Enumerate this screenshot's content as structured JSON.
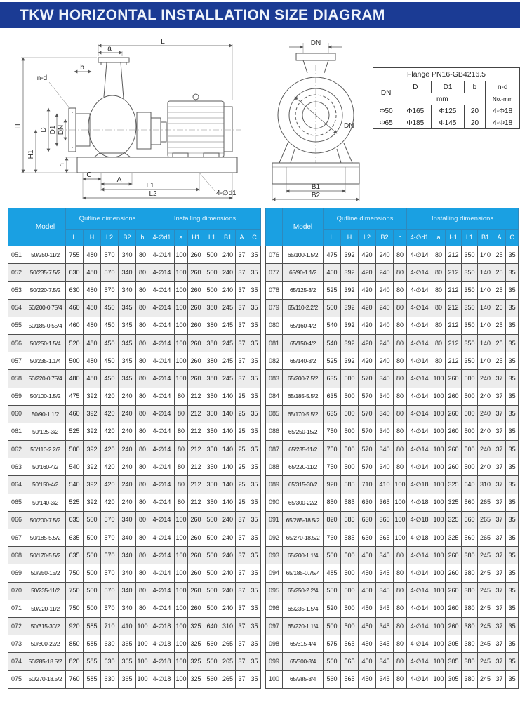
{
  "title": "TKW HORIZONTAL INSTALLATION SIZE DIAGRAM",
  "colors": {
    "banner": "#1b3b94",
    "table_header": "#1aa0e2",
    "row_alt": "#ececec"
  },
  "drawing": {
    "side": {
      "L": "L",
      "a": "a",
      "b": "b",
      "nd": "n-d",
      "H": "H",
      "H1": "H1",
      "D": "D",
      "D1": "D1",
      "DN": "DN",
      "h": "h",
      "C": "C",
      "A": "A",
      "L1": "L1",
      "L2": "L2",
      "d1": "4-∅d1"
    },
    "front": {
      "DN": "DN",
      "B1": "B1",
      "B2": "B2"
    }
  },
  "flange_table": {
    "title": "Flange PN16-GB4216.5",
    "headers": [
      "DN",
      "D",
      "D1",
      "b",
      "n-d"
    ],
    "unit_mm": "mm",
    "unit_nd": "No.-mm",
    "rows": [
      [
        "Φ50",
        "Φ165",
        "Φ125",
        "20",
        "4-Φ18"
      ],
      [
        "Φ65",
        "Φ185",
        "Φ145",
        "20",
        "4-Φ18"
      ]
    ]
  },
  "main_table": {
    "model_header": "Model",
    "group1": "Qutline dimensions",
    "group2": "Installing dimensions",
    "columns": [
      "L",
      "H",
      "L2",
      "B2",
      "h",
      "4-∅d1",
      "a",
      "H1",
      "L1",
      "B1",
      "A",
      "C"
    ],
    "left_rows": [
      [
        "051",
        "50/250-11/2",
        "755",
        "480",
        "570",
        "340",
        "80",
        "4-∅14",
        "100",
        "260",
        "500",
        "240",
        "37",
        "35"
      ],
      [
        "052",
        "50/235-7.5/2",
        "630",
        "480",
        "570",
        "340",
        "80",
        "4-∅14",
        "100",
        "260",
        "500",
        "240",
        "37",
        "35"
      ],
      [
        "053",
        "50/220-7.5/2",
        "630",
        "480",
        "570",
        "340",
        "80",
        "4-∅14",
        "100",
        "260",
        "500",
        "240",
        "37",
        "35"
      ],
      [
        "054",
        "50/200-0.75/4",
        "460",
        "480",
        "450",
        "345",
        "80",
        "4-∅14",
        "100",
        "260",
        "380",
        "245",
        "37",
        "35"
      ],
      [
        "055",
        "50/185-0.55/4",
        "460",
        "480",
        "450",
        "345",
        "80",
        "4-∅14",
        "100",
        "260",
        "380",
        "245",
        "37",
        "35"
      ],
      [
        "056",
        "50/250-1.5/4",
        "520",
        "480",
        "450",
        "345",
        "80",
        "4-∅14",
        "100",
        "260",
        "380",
        "245",
        "37",
        "35"
      ],
      [
        "057",
        "50/235-1.1/4",
        "500",
        "480",
        "450",
        "345",
        "80",
        "4-∅14",
        "100",
        "260",
        "380",
        "245",
        "37",
        "35"
      ],
      [
        "058",
        "50/220-0.75/4",
        "480",
        "480",
        "450",
        "345",
        "80",
        "4-∅14",
        "100",
        "260",
        "380",
        "245",
        "37",
        "35"
      ],
      [
        "059",
        "50/100-1.5/2",
        "475",
        "392",
        "420",
        "240",
        "80",
        "4-∅14",
        "80",
        "212",
        "350",
        "140",
        "25",
        "35"
      ],
      [
        "060",
        "50/90-1.1/2",
        "460",
        "392",
        "420",
        "240",
        "80",
        "4-∅14",
        "80",
        "212",
        "350",
        "140",
        "25",
        "35"
      ],
      [
        "061",
        "50/125-3/2",
        "525",
        "392",
        "420",
        "240",
        "80",
        "4-∅14",
        "80",
        "212",
        "350",
        "140",
        "25",
        "35"
      ],
      [
        "062",
        "50/110-2.2/2",
        "500",
        "392",
        "420",
        "240",
        "80",
        "4-∅14",
        "80",
        "212",
        "350",
        "140",
        "25",
        "35"
      ],
      [
        "063",
        "50/160-4/2",
        "540",
        "392",
        "420",
        "240",
        "80",
        "4-∅14",
        "80",
        "212",
        "350",
        "140",
        "25",
        "35"
      ],
      [
        "064",
        "50/150-4/2",
        "540",
        "392",
        "420",
        "240",
        "80",
        "4-∅14",
        "80",
        "212",
        "350",
        "140",
        "25",
        "35"
      ],
      [
        "065",
        "50/140-3/2",
        "525",
        "392",
        "420",
        "240",
        "80",
        "4-∅14",
        "80",
        "212",
        "350",
        "140",
        "25",
        "35"
      ],
      [
        "066",
        "50/200-7.5/2",
        "635",
        "500",
        "570",
        "340",
        "80",
        "4-∅14",
        "100",
        "260",
        "500",
        "240",
        "37",
        "35"
      ],
      [
        "067",
        "50/185-5.5/2",
        "635",
        "500",
        "570",
        "340",
        "80",
        "4-∅14",
        "100",
        "260",
        "500",
        "240",
        "37",
        "35"
      ],
      [
        "068",
        "50/170-5.5/2",
        "635",
        "500",
        "570",
        "340",
        "80",
        "4-∅14",
        "100",
        "260",
        "500",
        "240",
        "37",
        "35"
      ],
      [
        "069",
        "50/250-15/2",
        "750",
        "500",
        "570",
        "340",
        "80",
        "4-∅14",
        "100",
        "260",
        "500",
        "240",
        "37",
        "35"
      ],
      [
        "070",
        "50/235-11/2",
        "750",
        "500",
        "570",
        "340",
        "80",
        "4-∅14",
        "100",
        "260",
        "500",
        "240",
        "37",
        "35"
      ],
      [
        "071",
        "50/220-11/2",
        "750",
        "500",
        "570",
        "340",
        "80",
        "4-∅14",
        "100",
        "260",
        "500",
        "240",
        "37",
        "35"
      ],
      [
        "072",
        "50/315-30/2",
        "920",
        "585",
        "710",
        "410",
        "100",
        "4-∅18",
        "100",
        "325",
        "640",
        "310",
        "37",
        "35"
      ],
      [
        "073",
        "50/300-22/2",
        "850",
        "585",
        "630",
        "365",
        "100",
        "4-∅18",
        "100",
        "325",
        "560",
        "265",
        "37",
        "35"
      ],
      [
        "074",
        "50/285-18.5/2",
        "820",
        "585",
        "630",
        "365",
        "100",
        "4-∅18",
        "100",
        "325",
        "560",
        "265",
        "37",
        "35"
      ],
      [
        "075",
        "50/270-18.5/2",
        "760",
        "585",
        "630",
        "365",
        "100",
        "4-∅18",
        "100",
        "325",
        "560",
        "265",
        "37",
        "35"
      ]
    ],
    "right_rows": [
      [
        "076",
        "65/100-1.5/2",
        "475",
        "392",
        "420",
        "240",
        "80",
        "4-∅14",
        "80",
        "212",
        "350",
        "140",
        "25",
        "35"
      ],
      [
        "077",
        "65/90-1.1/2",
        "460",
        "392",
        "420",
        "240",
        "80",
        "4-∅14",
        "80",
        "212",
        "350",
        "140",
        "25",
        "35"
      ],
      [
        "078",
        "65/125-3/2",
        "525",
        "392",
        "420",
        "240",
        "80",
        "4-∅14",
        "80",
        "212",
        "350",
        "140",
        "25",
        "35"
      ],
      [
        "079",
        "65/110-2.2/2",
        "500",
        "392",
        "420",
        "240",
        "80",
        "4-∅14",
        "80",
        "212",
        "350",
        "140",
        "25",
        "35"
      ],
      [
        "080",
        "65/160-4/2",
        "540",
        "392",
        "420",
        "240",
        "80",
        "4-∅14",
        "80",
        "212",
        "350",
        "140",
        "25",
        "35"
      ],
      [
        "081",
        "65/150-4/2",
        "540",
        "392",
        "420",
        "240",
        "80",
        "4-∅14",
        "80",
        "212",
        "350",
        "140",
        "25",
        "35"
      ],
      [
        "082",
        "65/140-3/2",
        "525",
        "392",
        "420",
        "240",
        "80",
        "4-∅14",
        "80",
        "212",
        "350",
        "140",
        "25",
        "35"
      ],
      [
        "083",
        "65/200-7.5/2",
        "635",
        "500",
        "570",
        "340",
        "80",
        "4-∅14",
        "100",
        "260",
        "500",
        "240",
        "37",
        "35"
      ],
      [
        "084",
        "65/185-5.5/2",
        "635",
        "500",
        "570",
        "340",
        "80",
        "4-∅14",
        "100",
        "260",
        "500",
        "240",
        "37",
        "35"
      ],
      [
        "085",
        "65/170-5.5/2",
        "635",
        "500",
        "570",
        "340",
        "80",
        "4-∅14",
        "100",
        "260",
        "500",
        "240",
        "37",
        "35"
      ],
      [
        "086",
        "65/250-15/2",
        "750",
        "500",
        "570",
        "340",
        "80",
        "4-∅14",
        "100",
        "260",
        "500",
        "240",
        "37",
        "35"
      ],
      [
        "087",
        "65/235-11/2",
        "750",
        "500",
        "570",
        "340",
        "80",
        "4-∅14",
        "100",
        "260",
        "500",
        "240",
        "37",
        "35"
      ],
      [
        "088",
        "65/220-11/2",
        "750",
        "500",
        "570",
        "340",
        "80",
        "4-∅14",
        "100",
        "260",
        "500",
        "240",
        "37",
        "35"
      ],
      [
        "089",
        "65/315-30/2",
        "920",
        "585",
        "710",
        "410",
        "100",
        "4-∅18",
        "100",
        "325",
        "640",
        "310",
        "37",
        "35"
      ],
      [
        "090",
        "65/300-22/2",
        "850",
        "585",
        "630",
        "365",
        "100",
        "4-∅18",
        "100",
        "325",
        "560",
        "265",
        "37",
        "35"
      ],
      [
        "091",
        "65/285-18.5/2",
        "820",
        "585",
        "630",
        "365",
        "100",
        "4-∅18",
        "100",
        "325",
        "560",
        "265",
        "37",
        "35"
      ],
      [
        "092",
        "65/270-18.5/2",
        "760",
        "585",
        "630",
        "365",
        "100",
        "4-∅18",
        "100",
        "325",
        "560",
        "265",
        "37",
        "35"
      ],
      [
        "093",
        "65/200-1.1/4",
        "500",
        "500",
        "450",
        "345",
        "80",
        "4-∅14",
        "100",
        "260",
        "380",
        "245",
        "37",
        "35"
      ],
      [
        "094",
        "65/185-0.75/4",
        "485",
        "500",
        "450",
        "345",
        "80",
        "4-∅14",
        "100",
        "260",
        "380",
        "245",
        "37",
        "35"
      ],
      [
        "095",
        "65/250-2.2/4",
        "550",
        "500",
        "450",
        "345",
        "80",
        "4-∅14",
        "100",
        "260",
        "380",
        "245",
        "37",
        "35"
      ],
      [
        "096",
        "65/235-1.5/4",
        "520",
        "500",
        "450",
        "345",
        "80",
        "4-∅14",
        "100",
        "260",
        "380",
        "245",
        "37",
        "35"
      ],
      [
        "097",
        "65/220-1.1/4",
        "500",
        "500",
        "450",
        "345",
        "80",
        "4-∅14",
        "100",
        "260",
        "380",
        "245",
        "37",
        "35"
      ],
      [
        "098",
        "65/315-4/4",
        "575",
        "565",
        "450",
        "345",
        "80",
        "4-∅14",
        "100",
        "305",
        "380",
        "245",
        "37",
        "35"
      ],
      [
        "099",
        "65/300-3/4",
        "560",
        "565",
        "450",
        "345",
        "80",
        "4-∅14",
        "100",
        "305",
        "380",
        "245",
        "37",
        "35"
      ],
      [
        "100",
        "65/285-3/4",
        "560",
        "565",
        "450",
        "345",
        "80",
        "4-∅14",
        "100",
        "305",
        "380",
        "245",
        "37",
        "35"
      ]
    ]
  }
}
